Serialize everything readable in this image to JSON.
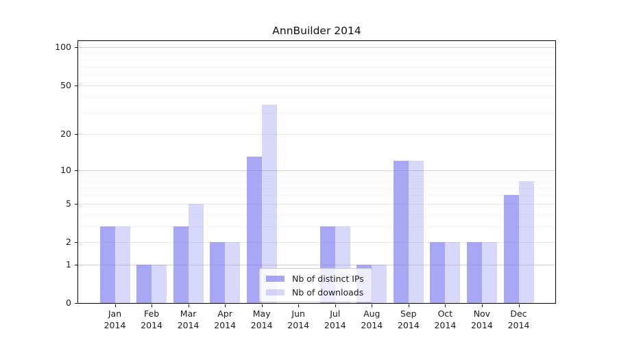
{
  "chart_data": {
    "type": "bar",
    "title": "AnnBuilder 2014",
    "categories": [
      {
        "month": "Jan",
        "year": "2014"
      },
      {
        "month": "Feb",
        "year": "2014"
      },
      {
        "month": "Mar",
        "year": "2014"
      },
      {
        "month": "Apr",
        "year": "2014"
      },
      {
        "month": "May",
        "year": "2014"
      },
      {
        "month": "Jun",
        "year": "2014"
      },
      {
        "month": "Jul",
        "year": "2014"
      },
      {
        "month": "Aug",
        "year": "2014"
      },
      {
        "month": "Sep",
        "year": "2014"
      },
      {
        "month": "Oct",
        "year": "2014"
      },
      {
        "month": "Nov",
        "year": "2014"
      },
      {
        "month": "Dec",
        "year": "2014"
      }
    ],
    "series": [
      {
        "key": "distinct-ips",
        "name": "Nb of distinct IPs",
        "color": "rgba(122,122,240,0.66)",
        "values": [
          3,
          1,
          3,
          2,
          13,
          0,
          3,
          1,
          12,
          2,
          2,
          6
        ]
      },
      {
        "key": "downloads",
        "name": "Nb of downloads",
        "color": "rgba(122,122,240,0.29)",
        "values": [
          3,
          1,
          5,
          2,
          35,
          0,
          3,
          1,
          12,
          2,
          2,
          8
        ]
      }
    ],
    "yscale": "log1p",
    "yticks": [
      0,
      1,
      2,
      5,
      10,
      20,
      50,
      100
    ],
    "ylim": [
      0,
      112
    ],
    "grid": "horizontal",
    "grid_values": {
      "major": [
        1,
        10,
        100
      ],
      "mid": [
        2,
        5,
        20,
        50
      ],
      "minor": [
        3,
        4,
        6,
        7,
        8,
        9,
        30,
        40,
        60,
        70,
        80,
        90
      ]
    },
    "legend_position": "lower center"
  }
}
